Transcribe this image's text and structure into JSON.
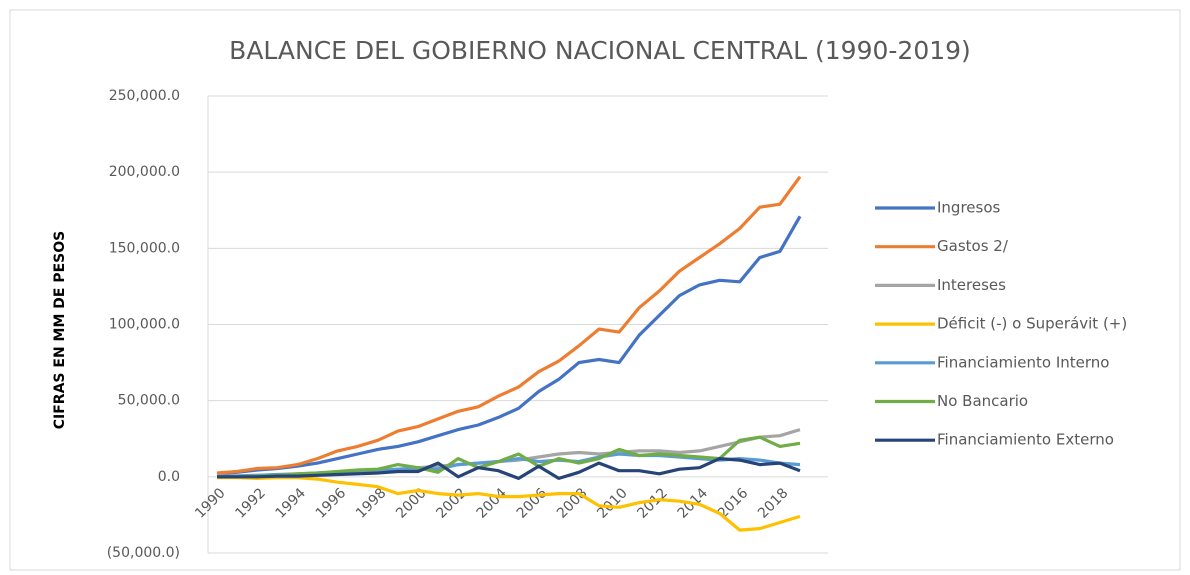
{
  "chart_data": {
    "type": "line",
    "title": "BALANCE DEL GOBIERNO NACIONAL CENTRAL (1990-2019)",
    "y_label": "CIFRAS  EN MM DE PESOS",
    "categories": [
      "1990",
      null,
      "1992",
      null,
      "1994",
      null,
      "1996",
      null,
      "1998",
      null,
      "2000",
      null,
      "2002",
      null,
      "2004",
      null,
      "2006",
      null,
      "2008",
      null,
      "2010",
      null,
      "2012",
      null,
      "2014",
      null,
      "2016",
      null,
      "2018",
      null
    ],
    "ylim": [
      -50000,
      250000
    ],
    "yticks": [
      {
        "value": -50000,
        "label": "(50,000.0)"
      },
      {
        "value": 0,
        "label": "0.0"
      },
      {
        "value": 50000,
        "label": "50,000.0"
      },
      {
        "value": 100000,
        "label": "100,000.0"
      },
      {
        "value": 150000,
        "label": "150,000.0"
      },
      {
        "value": 200000,
        "label": "200,000.0"
      },
      {
        "value": 250000,
        "label": "250,000.0"
      }
    ],
    "grid": true,
    "legend": "right",
    "series": [
      {
        "name": "Ingresos",
        "color": "#4472c4",
        "values": [
          2000,
          3000,
          4500,
          5500,
          7000,
          9000,
          12000,
          15000,
          18000,
          20000,
          23000,
          27000,
          31000,
          34000,
          39000,
          45000,
          56000,
          64000,
          75000,
          77000,
          75000,
          93000,
          106000,
          119000,
          126000,
          129000,
          128000,
          144000,
          148000,
          171000
        ]
      },
      {
        "name": "Gastos 2/",
        "color": "#ed7d31",
        "values": [
          2500,
          3500,
          5500,
          6000,
          8000,
          12000,
          17000,
          20000,
          24000,
          30000,
          33000,
          38000,
          43000,
          46000,
          53000,
          59000,
          69000,
          76000,
          86000,
          97000,
          95000,
          111000,
          122000,
          135000,
          144000,
          153000,
          163000,
          177000,
          179000,
          197000
        ]
      },
      {
        "name": "Intereses",
        "color": "#a5a5a5",
        "values": [
          500,
          700,
          1000,
          1200,
          1500,
          2000,
          2500,
          3000,
          4000,
          5000,
          6000,
          7000,
          8000,
          9000,
          10000,
          11000,
          13000,
          15000,
          16000,
          15000,
          16000,
          17000,
          17000,
          16000,
          17000,
          20000,
          23000,
          26000,
          27000,
          31000
        ]
      },
      {
        "name": "Déficit (-) o Superávit (+)",
        "color": "#ffc000",
        "values": [
          -500,
          -500,
          -1000,
          -500,
          -500,
          -1500,
          -3500,
          -5000,
          -6500,
          -11000,
          -9000,
          -11000,
          -12000,
          -11000,
          -13000,
          -13000,
          -12000,
          -11000,
          -11000,
          -19000,
          -20000,
          -17000,
          -15000,
          -16000,
          -18000,
          -24000,
          -35000,
          -34000,
          -30000,
          -26000
        ]
      },
      {
        "name": "Financiamiento Interno",
        "color": "#5b9bd5",
        "values": [
          0,
          500,
          1000,
          1500,
          2000,
          2500,
          3000,
          3500,
          4000,
          5000,
          5500,
          5000,
          8000,
          9000,
          10000,
          12000,
          10000,
          11000,
          10000,
          13000,
          15000,
          14000,
          14000,
          13000,
          12000,
          11000,
          12000,
          11000,
          9000,
          8000
        ]
      },
      {
        "name": "No Bancario",
        "color": "#70ad47",
        "values": [
          0,
          0,
          500,
          1000,
          2000,
          2500,
          3500,
          4500,
          5000,
          8000,
          6000,
          3000,
          12000,
          6000,
          10000,
          15000,
          7000,
          12000,
          9000,
          12000,
          18000,
          14000,
          15000,
          14000,
          13000,
          12000,
          24000,
          26000,
          20000,
          22000
        ]
      },
      {
        "name": "Financiamiento Externo",
        "color": "#264478",
        "values": [
          0,
          0,
          0,
          500,
          500,
          1000,
          1500,
          2000,
          2500,
          3500,
          3500,
          9000,
          0,
          6000,
          4000,
          -1000,
          7000,
          -1000,
          3000,
          9000,
          4000,
          4000,
          2000,
          5000,
          6000,
          12000,
          11000,
          8000,
          9000,
          4000
        ]
      }
    ]
  }
}
